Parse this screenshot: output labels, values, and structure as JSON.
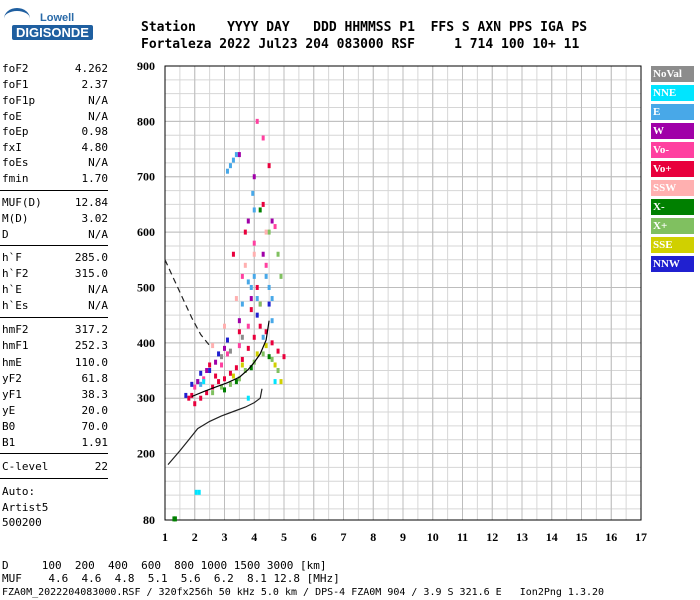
{
  "logo": {
    "top": "Lowell",
    "main": "DIGISONDE"
  },
  "header": {
    "labels": "Station    YYYY DAY   DDD HHMMSS P1  FFS S AXN PPS IGA PS",
    "values": "Fortaleza 2022 Jul23 204 083000 RSF     1 714 100 10+ 11"
  },
  "params": [
    {
      "label": "foF2",
      "value": "4.262"
    },
    {
      "label": "foF1",
      "value": "2.37"
    },
    {
      "label": "foF1p",
      "value": "N/A"
    },
    {
      "label": "foE",
      "value": "N/A"
    },
    {
      "label": "foEp",
      "value": "0.98"
    },
    {
      "label": "fxI",
      "value": "4.80"
    },
    {
      "label": "foEs",
      "value": "N/A"
    },
    {
      "label": "fmin",
      "value": "1.70"
    },
    {
      "label": "MUF(D)",
      "value": "12.84"
    },
    {
      "label": "M(D)",
      "value": "3.02"
    },
    {
      "label": "D",
      "value": "N/A"
    },
    {
      "label": "h`F",
      "value": "285.0"
    },
    {
      "label": "h`F2",
      "value": "315.0"
    },
    {
      "label": "h`E",
      "value": "N/A"
    },
    {
      "label": "h`Es",
      "value": "N/A"
    },
    {
      "label": "hmF2",
      "value": "317.2"
    },
    {
      "label": "hmF1",
      "value": "252.3"
    },
    {
      "label": "hmE",
      "value": "110.0"
    },
    {
      "label": "yF2",
      "value": "61.8"
    },
    {
      "label": "yF1",
      "value": "38.3"
    },
    {
      "label": "yE",
      "value": "20.0"
    },
    {
      "label": "B0",
      "value": "70.0"
    },
    {
      "label": "B1",
      "value": "1.91"
    },
    {
      "label": "C-level",
      "value": "22"
    }
  ],
  "auto": {
    "line1": "Auto:",
    "line2": "Artist5",
    "line3": "500200"
  },
  "legend": [
    {
      "label": "NoVal",
      "color": "#8c8c8c"
    },
    {
      "label": "NNE",
      "color": "#00e5ff"
    },
    {
      "label": "E",
      "color": "#48a8e8"
    },
    {
      "label": "W",
      "color": "#a000a8"
    },
    {
      "label": "Vo-",
      "color": "#ff40a0"
    },
    {
      "label": "Vo+",
      "color": "#e8003c"
    },
    {
      "label": "SSW",
      "color": "#ffb0b0"
    },
    {
      "label": "X-",
      "color": "#008000"
    },
    {
      "label": "X+",
      "color": "#80c060"
    },
    {
      "label": "SSE",
      "color": "#d0d000"
    },
    {
      "label": "NNW",
      "color": "#2020d0"
    }
  ],
  "footer": {
    "d_row": "D     100  200  400  600  800 1000 1500 3000 [km]",
    "muf_row": "MUF    4.6  4.6  4.8  5.1  5.6  6.2  8.1 12.8 [MHz]",
    "file_row": "FZA0M_2022204083000.RSF / 320fx256h 50 kHz 5.0 km / DPS-4 FZA0M 904 / 3.9 S 321.6 E   Ion2Png 1.3.20"
  },
  "chart_data": {
    "type": "scatter",
    "title": "",
    "xlabel": "",
    "ylabel": "",
    "xlim": [
      1,
      17
    ],
    "ylim": [
      80,
      900
    ],
    "x_ticks": [
      1,
      2,
      3,
      4,
      5,
      6,
      7,
      8,
      9,
      10,
      11,
      12,
      13,
      14,
      15,
      16,
      17
    ],
    "y_ticks": [
      80,
      200,
      300,
      400,
      500,
      600,
      700,
      800,
      900
    ],
    "grid": true,
    "series": [
      {
        "name": "E",
        "color": "#48a8e8",
        "points": [
          [
            3.2,
            720
          ],
          [
            3.3,
            730
          ],
          [
            3.4,
            740
          ],
          [
            3.1,
            710
          ],
          [
            3.8,
            510
          ],
          [
            3.9,
            500
          ],
          [
            4.0,
            520
          ],
          [
            4.1,
            480
          ],
          [
            3.6,
            470
          ],
          [
            4.4,
            520
          ],
          [
            4.5,
            500
          ],
          [
            4.6,
            480
          ],
          [
            3.95,
            670
          ],
          [
            4.0,
            640
          ],
          [
            4.3,
            410
          ],
          [
            4.6,
            440
          ],
          [
            2.2,
            325
          ],
          [
            2.1,
            330
          ]
        ]
      },
      {
        "name": "Vo+",
        "color": "#e8003c",
        "points": [
          [
            1.8,
            300
          ],
          [
            1.9,
            305
          ],
          [
            2.0,
            290
          ],
          [
            2.2,
            300
          ],
          [
            2.4,
            310
          ],
          [
            2.6,
            320
          ],
          [
            2.8,
            330
          ],
          [
            3.0,
            335
          ],
          [
            3.2,
            345
          ],
          [
            3.4,
            355
          ],
          [
            3.6,
            370
          ],
          [
            3.8,
            390
          ],
          [
            4.0,
            410
          ],
          [
            4.2,
            430
          ],
          [
            4.4,
            420
          ],
          [
            4.6,
            400
          ],
          [
            4.8,
            385
          ],
          [
            5.0,
            375
          ],
          [
            2.5,
            360
          ],
          [
            2.7,
            340
          ],
          [
            3.5,
            420
          ],
          [
            3.9,
            460
          ],
          [
            4.1,
            500
          ],
          [
            3.3,
            560
          ],
          [
            3.7,
            600
          ],
          [
            4.3,
            650
          ],
          [
            4.5,
            720
          ]
        ]
      },
      {
        "name": "Vo-",
        "color": "#ff40a0",
        "points": [
          [
            2.0,
            320
          ],
          [
            2.3,
            335
          ],
          [
            2.9,
            360
          ],
          [
            3.1,
            380
          ],
          [
            3.5,
            395
          ],
          [
            3.8,
            430
          ],
          [
            4.2,
            470
          ],
          [
            4.4,
            540
          ],
          [
            4.0,
            580
          ],
          [
            3.6,
            520
          ],
          [
            4.7,
            610
          ],
          [
            4.1,
            800
          ],
          [
            4.3,
            770
          ]
        ]
      },
      {
        "name": "X+",
        "color": "#80c060",
        "points": [
          [
            2.6,
            310
          ],
          [
            2.9,
            320
          ],
          [
            3.2,
            325
          ],
          [
            3.5,
            335
          ],
          [
            3.7,
            350
          ],
          [
            4.0,
            365
          ],
          [
            4.3,
            380
          ],
          [
            4.6,
            370
          ],
          [
            4.8,
            350
          ],
          [
            4.9,
            520
          ],
          [
            4.8,
            560
          ],
          [
            4.5,
            600
          ],
          [
            4.2,
            470
          ]
        ]
      },
      {
        "name": "X-",
        "color": "#008000",
        "points": [
          [
            3.0,
            315
          ],
          [
            3.4,
            330
          ],
          [
            3.9,
            355
          ],
          [
            4.5,
            375
          ],
          [
            1.3,
            82
          ],
          [
            1.35,
            82
          ],
          [
            4.2,
            640
          ]
        ]
      },
      {
        "name": "SSE",
        "color": "#d0d000",
        "points": [
          [
            3.3,
            340
          ],
          [
            3.6,
            360
          ],
          [
            4.1,
            380
          ],
          [
            4.4,
            395
          ],
          [
            4.7,
            360
          ],
          [
            4.9,
            330
          ]
        ]
      },
      {
        "name": "W",
        "color": "#a000a8",
        "points": [
          [
            2.1,
            330
          ],
          [
            2.4,
            350
          ],
          [
            2.7,
            365
          ],
          [
            3.0,
            390
          ],
          [
            3.5,
            440
          ],
          [
            3.9,
            480
          ],
          [
            4.3,
            560
          ],
          [
            4.6,
            620
          ],
          [
            3.8,
            620
          ],
          [
            4.0,
            700
          ],
          [
            3.5,
            740
          ]
        ]
      },
      {
        "name": "NNW",
        "color": "#2020d0",
        "points": [
          [
            1.7,
            305
          ],
          [
            1.9,
            325
          ],
          [
            2.2,
            345
          ],
          [
            2.5,
            350
          ],
          [
            2.8,
            380
          ],
          [
            3.1,
            405
          ],
          [
            4.1,
            450
          ],
          [
            4.5,
            470
          ]
        ]
      },
      {
        "name": "NNE",
        "color": "#00e5ff",
        "points": [
          [
            2.3,
            330
          ],
          [
            3.8,
            300
          ],
          [
            4.7,
            330
          ],
          [
            2.05,
            130
          ],
          [
            2.15,
            130
          ]
        ]
      },
      {
        "name": "SSW",
        "color": "#ffb0b0",
        "points": [
          [
            2.6,
            395
          ],
          [
            3.0,
            430
          ],
          [
            3.4,
            480
          ],
          [
            3.7,
            540
          ],
          [
            4.0,
            560
          ],
          [
            4.4,
            600
          ]
        ]
      },
      {
        "name": "NoVal",
        "color": "#8c8c8c",
        "points": [
          [
            2.9,
            375
          ],
          [
            3.2,
            385
          ],
          [
            3.6,
            410
          ]
        ]
      }
    ],
    "profile_solid": [
      [
        1.1,
        180
      ],
      [
        1.5,
        205
      ],
      [
        1.8,
        225
      ],
      [
        2.1,
        245
      ],
      [
        2.5,
        258
      ],
      [
        2.9,
        268
      ],
      [
        3.3,
        276
      ],
      [
        3.7,
        284
      ],
      [
        4.0,
        292
      ],
      [
        4.2,
        300
      ],
      [
        4.26,
        317
      ]
    ],
    "profile_trace": [
      [
        1.9,
        303
      ],
      [
        2.3,
        312
      ],
      [
        2.7,
        320
      ],
      [
        3.1,
        328
      ],
      [
        3.5,
        338
      ],
      [
        3.8,
        352
      ],
      [
        4.0,
        365
      ],
      [
        4.2,
        380
      ],
      [
        4.4,
        405
      ],
      [
        4.5,
        440
      ]
    ],
    "profile_dashed": [
      [
        1.0,
        550
      ],
      [
        1.3,
        515
      ],
      [
        1.6,
        480
      ],
      [
        1.9,
        445
      ],
      [
        2.2,
        415
      ],
      [
        2.5,
        395
      ]
    ]
  }
}
